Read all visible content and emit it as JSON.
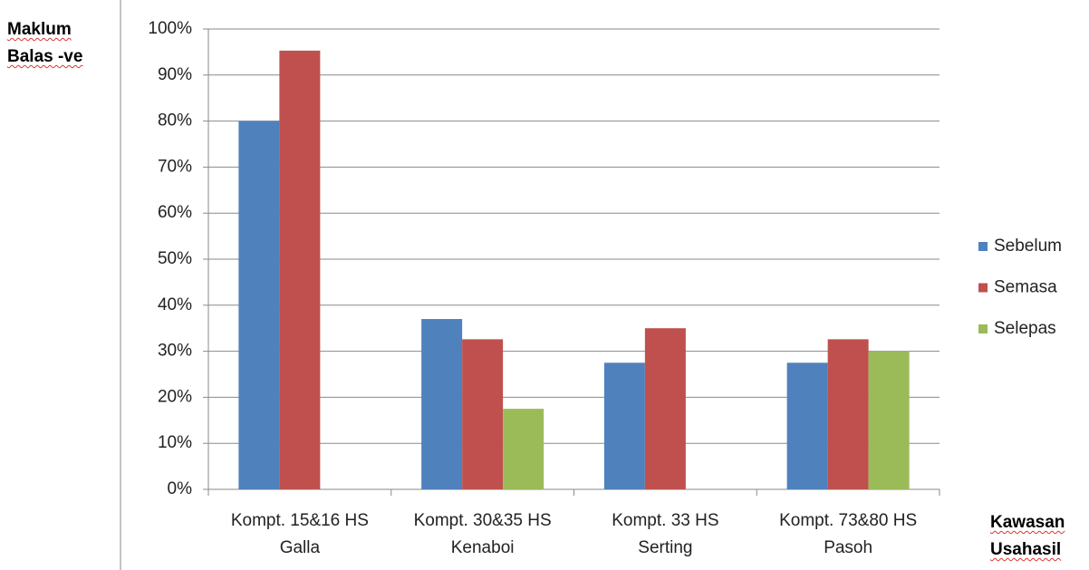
{
  "chart_data": {
    "type": "bar",
    "y_label": "Maklum\nBalas -ve",
    "x_label": "Kawasan\nUsahasil",
    "categories": [
      "Kompt. 15&16 HS\nGalla",
      "Kompt. 30&35 HS\nKenaboi",
      "Kompt. 33 HS\nSerting",
      "Kompt. 73&80 HS\nPasoh"
    ],
    "series": [
      {
        "name": "Sebelum",
        "color": "#4f81bd",
        "values": [
          80,
          37,
          27.5,
          27.5
        ]
      },
      {
        "name": "Semasa",
        "color": "#c0504d",
        "values": [
          95.3,
          32.6,
          35,
          32.6
        ]
      },
      {
        "name": "Selepas",
        "color": "#9bbb59",
        "values": [
          null,
          17.5,
          null,
          30
        ]
      }
    ],
    "ylim": [
      0,
      100
    ],
    "yticks": [
      {
        "value": 0,
        "label": "0%"
      },
      {
        "value": 10,
        "label": "10%"
      },
      {
        "value": 20,
        "label": "20%"
      },
      {
        "value": 30,
        "label": "30%"
      },
      {
        "value": 40,
        "label": "40%"
      },
      {
        "value": 50,
        "label": "50%"
      },
      {
        "value": 60,
        "label": "60%"
      },
      {
        "value": 70,
        "label": "70%"
      },
      {
        "value": 80,
        "label": "80%"
      },
      {
        "value": 90,
        "label": "90%"
      },
      {
        "value": 100,
        "label": "100%"
      }
    ],
    "grid": true,
    "legend": "right"
  }
}
